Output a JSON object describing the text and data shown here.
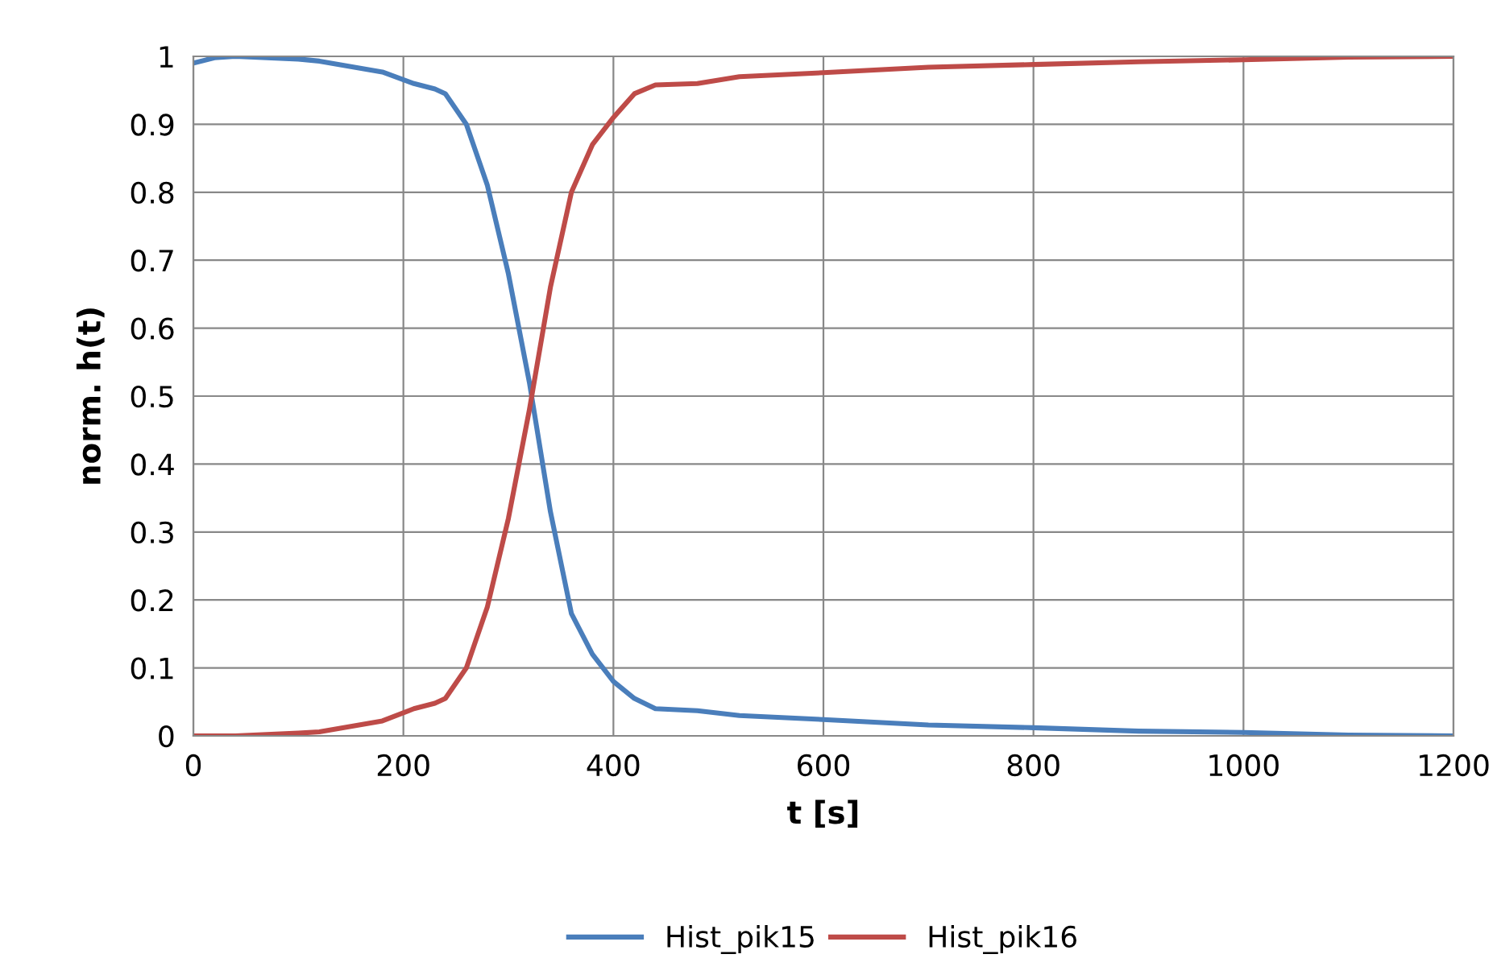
{
  "chart_data": {
    "type": "line",
    "xlabel": "t [s]",
    "ylabel": "norm. h(t)",
    "xlim": [
      0,
      1200
    ],
    "xticks": [
      0,
      200,
      400,
      600,
      800,
      1000,
      1200
    ],
    "ylim": [
      0,
      1
    ],
    "yticks": [
      0,
      {
        "value": 0.1,
        "label": "0.1"
      },
      {
        "value": 0.2,
        "label": "0.2"
      },
      {
        "value": 0.3,
        "label": "0.3"
      },
      {
        "value": 0.4,
        "label": "0.4"
      },
      {
        "value": 0.5,
        "label": "0.5"
      },
      {
        "value": 0.6,
        "label": "0.6"
      },
      {
        "value": 0.7,
        "label": "0.7"
      },
      {
        "value": 0.8,
        "label": "0.8"
      },
      {
        "value": 0.9,
        "label": "0.9"
      },
      1
    ],
    "grid": true,
    "legend": "bottom",
    "marker": "none",
    "line_style": "solid",
    "x": [
      0,
      20,
      40,
      100,
      120,
      180,
      210,
      230,
      240,
      260,
      280,
      300,
      320,
      340,
      360,
      380,
      400,
      420,
      440,
      480,
      520,
      600,
      700,
      800,
      900,
      1000,
      1100,
      1200
    ],
    "series": [
      {
        "name": "Hist_pik15",
        "color": "#4a7ebb",
        "values": [
          0.99,
          0.998,
          1.0,
          0.996,
          0.993,
          0.977,
          0.96,
          0.952,
          0.945,
          0.9,
          0.81,
          0.68,
          0.52,
          0.33,
          0.18,
          0.12,
          0.08,
          0.055,
          0.04,
          0.037,
          0.03,
          0.024,
          0.016,
          0.012,
          0.007,
          0.005,
          0.001,
          0
        ]
      },
      {
        "name": "Hist_pik16",
        "color": "#be4b48",
        "values": [
          0,
          0,
          0,
          0.004,
          0.006,
          0.022,
          0.04,
          0.048,
          0.055,
          0.1,
          0.19,
          0.32,
          0.48,
          0.66,
          0.8,
          0.87,
          0.91,
          0.945,
          0.958,
          0.96,
          0.97,
          0.976,
          0.984,
          0.988,
          0.992,
          0.995,
          0.999,
          1.0
        ]
      }
    ]
  }
}
